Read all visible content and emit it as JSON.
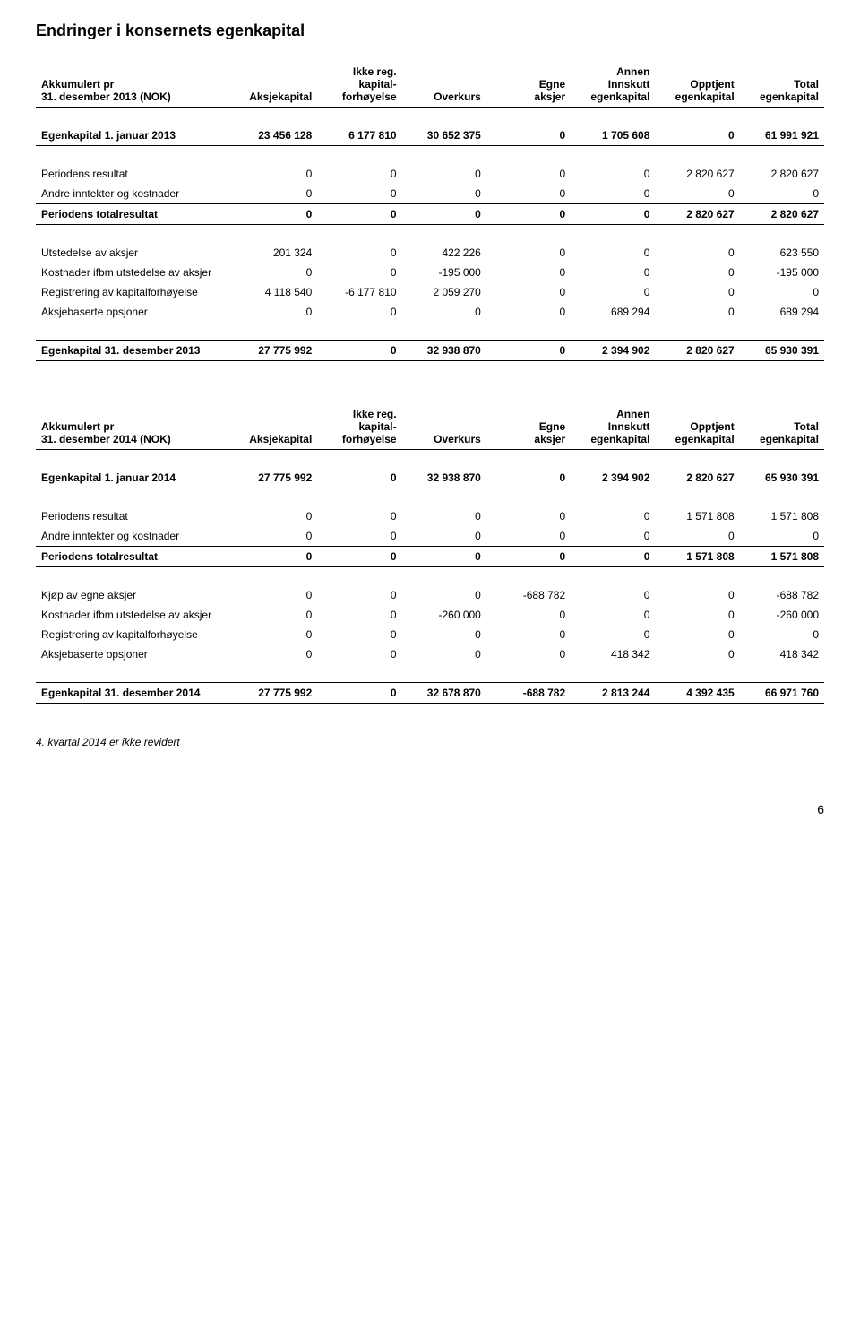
{
  "page_title": "Endringer i konsernets egenkapital",
  "columns": {
    "c1": "Aksjekapital",
    "c2a": "Ikke reg.",
    "c2b": "kapital-",
    "c2c": "forhøyelse",
    "c3": "Overkurs",
    "c4a": "Egne",
    "c4b": "aksjer",
    "c5a": "Annen",
    "c5b": "Innskutt",
    "c5c": "egenkapital",
    "c6a": "Opptjent",
    "c6b": "egenkapital",
    "c7a": "Total",
    "c7b": "egenkapital"
  },
  "table1": {
    "header_l1": "Akkumulert pr",
    "header_l2": "31. desember 2013 (NOK)",
    "open_label": "Egenkapital 1. januar 2013",
    "open": [
      "23 456 128",
      "6 177 810",
      "30 652 375",
      "0",
      "1 705 608",
      "0",
      "61 991 921"
    ],
    "r1_label": "Periodens resultat",
    "r1": [
      "0",
      "0",
      "0",
      "0",
      "0",
      "2 820 627",
      "2 820 627"
    ],
    "r2_label": "Andre inntekter og kostnader",
    "r2": [
      "0",
      "0",
      "0",
      "0",
      "0",
      "0",
      "0"
    ],
    "r3_label": "Periodens totalresultat",
    "r3": [
      "0",
      "0",
      "0",
      "0",
      "0",
      "2 820 627",
      "2 820 627"
    ],
    "r4_label": "Utstedelse av aksjer",
    "r4": [
      "201 324",
      "0",
      "422 226",
      "0",
      "0",
      "0",
      "623 550"
    ],
    "r5_label": "Kostnader ifbm utstedelse av aksjer",
    "r5": [
      "0",
      "0",
      "-195 000",
      "0",
      "0",
      "0",
      "-195 000"
    ],
    "r6_label": "Registrering av kapitalforhøyelse",
    "r6": [
      "4 118 540",
      "-6 177 810",
      "2 059 270",
      "0",
      "0",
      "0",
      "0"
    ],
    "r7_label": "Aksjebaserte opsjoner",
    "r7": [
      "0",
      "0",
      "0",
      "0",
      "689 294",
      "0",
      "689 294"
    ],
    "close_label": "Egenkapital 31. desember 2013",
    "close": [
      "27 775 992",
      "0",
      "32 938 870",
      "0",
      "2 394 902",
      "2 820 627",
      "65 930 391"
    ]
  },
  "table2": {
    "header_l1": "Akkumulert pr",
    "header_l2": "31. desember 2014 (NOK)",
    "open_label": "Egenkapital 1. januar 2014",
    "open": [
      "27 775 992",
      "0",
      "32 938 870",
      "0",
      "2 394 902",
      "2 820 627",
      "65 930 391"
    ],
    "r1_label": "Periodens resultat",
    "r1": [
      "0",
      "0",
      "0",
      "0",
      "0",
      "1 571 808",
      "1 571 808"
    ],
    "r2_label": "Andre inntekter og kostnader",
    "r2": [
      "0",
      "0",
      "0",
      "0",
      "0",
      "0",
      "0"
    ],
    "r3_label": "Periodens totalresultat",
    "r3": [
      "0",
      "0",
      "0",
      "0",
      "0",
      "1 571 808",
      "1 571 808"
    ],
    "r4_label": "Kjøp av egne aksjer",
    "r4": [
      "0",
      "0",
      "0",
      "-688 782",
      "0",
      "0",
      "-688 782"
    ],
    "r5_label": "Kostnader ifbm utstedelse av aksjer",
    "r5": [
      "0",
      "0",
      "-260 000",
      "0",
      "0",
      "0",
      "-260 000"
    ],
    "r6_label": "Registrering av kapitalforhøyelse",
    "r6": [
      "0",
      "0",
      "0",
      "0",
      "0",
      "0",
      "0"
    ],
    "r7_label": "Aksjebaserte opsjoner",
    "r7": [
      "0",
      "0",
      "0",
      "0",
      "418 342",
      "0",
      "418 342"
    ],
    "close_label": "Egenkapital 31. desember 2014",
    "close": [
      "27 775 992",
      "0",
      "32 678 870",
      "-688 782",
      "2 813 244",
      "4 392 435",
      "66 971 760"
    ]
  },
  "footnote": "4. kvartal 2014 er ikke revidert",
  "page_number": "6"
}
